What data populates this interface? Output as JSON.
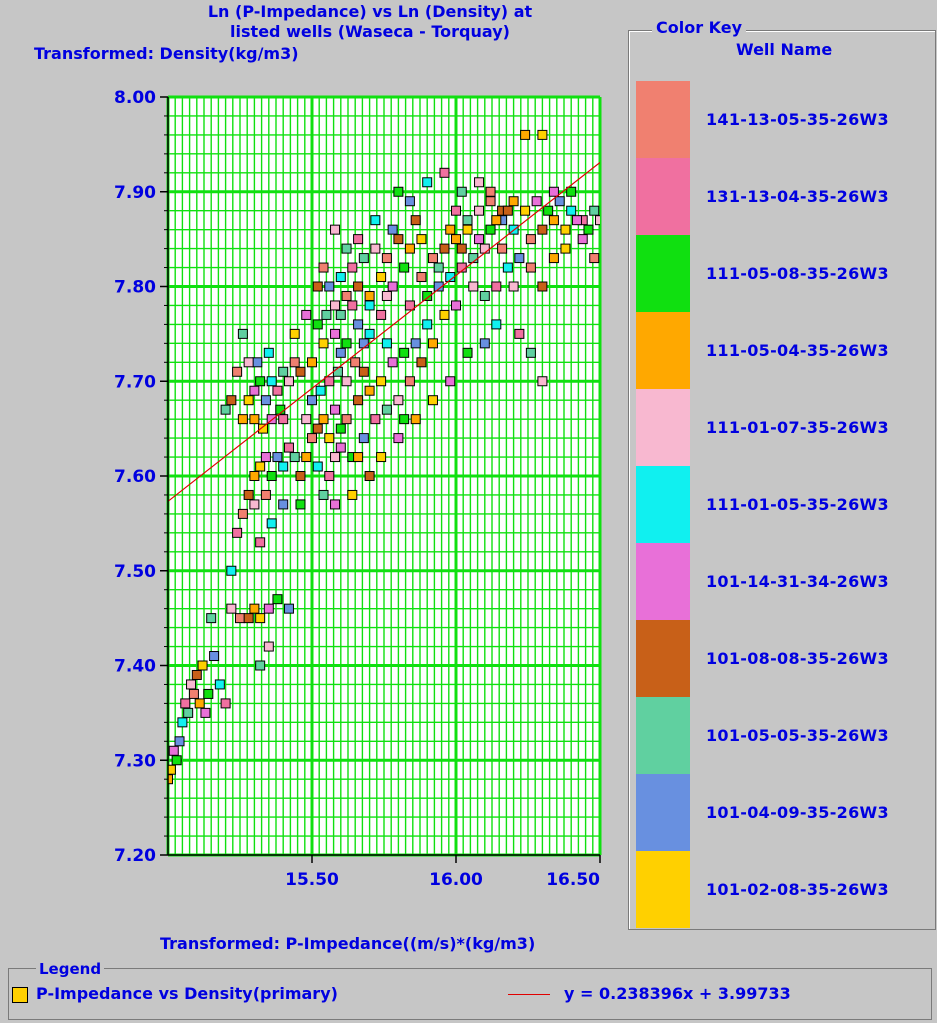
{
  "chart_data": {
    "type": "scatter",
    "title": [
      "Ln (P-Impedance) vs Ln (Density) at",
      "listed wells (Waseca - Torquay)"
    ],
    "ylabel": "Transformed: Density(kg/m3)",
    "xlabel": "Transformed: P-Impedance((m/s)*(kg/m3)",
    "xlim": [
      15.0,
      16.5
    ],
    "ylim": [
      7.2,
      8.0
    ],
    "x_ticks": [
      "15.50",
      "16.00",
      "16.50"
    ],
    "y_ticks": [
      "7.20",
      "7.30",
      "7.40",
      "7.50",
      "7.60",
      "7.70",
      "7.80",
      "7.90",
      "8.00"
    ],
    "grid": true,
    "trendline": {
      "slope": 0.238396,
      "intercept": 3.99733,
      "color": "#e00000"
    },
    "series_points": [
      [
        15.0,
        7.28
      ],
      [
        15.01,
        7.29
      ],
      [
        15.02,
        7.31
      ],
      [
        15.03,
        7.3
      ],
      [
        15.04,
        7.32
      ],
      [
        15.05,
        7.34
      ],
      [
        15.06,
        7.36
      ],
      [
        15.07,
        7.35
      ],
      [
        15.08,
        7.38
      ],
      [
        15.09,
        7.37
      ],
      [
        15.1,
        7.39
      ],
      [
        15.11,
        7.36
      ],
      [
        15.12,
        7.4
      ],
      [
        15.13,
        7.35
      ],
      [
        15.14,
        7.37
      ],
      [
        15.16,
        7.41
      ],
      [
        15.18,
        7.38
      ],
      [
        15.2,
        7.36
      ],
      [
        15.15,
        7.45
      ],
      [
        15.22,
        7.46
      ],
      [
        15.25,
        7.45
      ],
      [
        15.28,
        7.45
      ],
      [
        15.3,
        7.46
      ],
      [
        15.32,
        7.45
      ],
      [
        15.35,
        7.46
      ],
      [
        15.38,
        7.47
      ],
      [
        15.42,
        7.46
      ],
      [
        15.22,
        7.5
      ],
      [
        15.24,
        7.54
      ],
      [
        15.32,
        7.4
      ],
      [
        15.35,
        7.42
      ],
      [
        15.26,
        7.56
      ],
      [
        15.28,
        7.58
      ],
      [
        15.3,
        7.6
      ],
      [
        15.32,
        7.61
      ],
      [
        15.34,
        7.62
      ],
      [
        15.36,
        7.6
      ],
      [
        15.38,
        7.62
      ],
      [
        15.4,
        7.61
      ],
      [
        15.42,
        7.63
      ],
      [
        15.44,
        7.62
      ],
      [
        15.3,
        7.57
      ],
      [
        15.34,
        7.58
      ],
      [
        15.46,
        7.6
      ],
      [
        15.48,
        7.62
      ],
      [
        15.28,
        7.68
      ],
      [
        15.3,
        7.69
      ],
      [
        15.32,
        7.7
      ],
      [
        15.34,
        7.68
      ],
      [
        15.36,
        7.7
      ],
      [
        15.38,
        7.69
      ],
      [
        15.4,
        7.71
      ],
      [
        15.42,
        7.7
      ],
      [
        15.44,
        7.72
      ],
      [
        15.46,
        7.71
      ],
      [
        15.3,
        7.66
      ],
      [
        15.33,
        7.65
      ],
      [
        15.36,
        7.66
      ],
      [
        15.39,
        7.67
      ],
      [
        15.31,
        7.72
      ],
      [
        15.35,
        7.73
      ],
      [
        15.4,
        7.66
      ],
      [
        15.2,
        7.67
      ],
      [
        15.48,
        7.66
      ],
      [
        15.5,
        7.64
      ],
      [
        15.52,
        7.65
      ],
      [
        15.54,
        7.66
      ],
      [
        15.56,
        7.64
      ],
      [
        15.58,
        7.67
      ],
      [
        15.6,
        7.65
      ],
      [
        15.5,
        7.68
      ],
      [
        15.53,
        7.69
      ],
      [
        15.56,
        7.7
      ],
      [
        15.59,
        7.71
      ],
      [
        15.62,
        7.7
      ],
      [
        15.65,
        7.72
      ],
      [
        15.68,
        7.71
      ],
      [
        15.5,
        7.72
      ],
      [
        15.54,
        7.74
      ],
      [
        15.58,
        7.75
      ],
      [
        15.62,
        7.74
      ],
      [
        15.66,
        7.76
      ],
      [
        15.7,
        7.75
      ],
      [
        15.74,
        7.77
      ],
      [
        15.55,
        7.77
      ],
      [
        15.58,
        7.78
      ],
      [
        15.62,
        7.79
      ],
      [
        15.66,
        7.8
      ],
      [
        15.7,
        7.79
      ],
      [
        15.74,
        7.81
      ],
      [
        15.78,
        7.8
      ],
      [
        15.82,
        7.82
      ],
      [
        15.56,
        7.8
      ],
      [
        15.6,
        7.81
      ],
      [
        15.64,
        7.82
      ],
      [
        15.68,
        7.83
      ],
      [
        15.72,
        7.84
      ],
      [
        15.76,
        7.83
      ],
      [
        15.8,
        7.85
      ],
      [
        15.84,
        7.84
      ],
      [
        15.88,
        7.85
      ],
      [
        15.6,
        7.63
      ],
      [
        15.64,
        7.62
      ],
      [
        15.68,
        7.64
      ],
      [
        15.52,
        7.61
      ],
      [
        15.56,
        7.6
      ],
      [
        15.54,
        7.58
      ],
      [
        15.58,
        7.62
      ],
      [
        15.62,
        7.66
      ],
      [
        15.66,
        7.68
      ],
      [
        15.7,
        7.69
      ],
      [
        15.74,
        7.7
      ],
      [
        15.78,
        7.72
      ],
      [
        15.82,
        7.73
      ],
      [
        15.86,
        7.74
      ],
      [
        15.9,
        7.76
      ],
      [
        15.72,
        7.66
      ],
      [
        15.76,
        7.67
      ],
      [
        15.8,
        7.68
      ],
      [
        15.84,
        7.7
      ],
      [
        15.88,
        7.72
      ],
      [
        15.92,
        7.74
      ],
      [
        15.96,
        7.77
      ],
      [
        16.0,
        7.78
      ],
      [
        15.9,
        7.79
      ],
      [
        15.94,
        7.8
      ],
      [
        15.98,
        7.81
      ],
      [
        16.02,
        7.82
      ],
      [
        16.06,
        7.83
      ],
      [
        16.1,
        7.84
      ],
      [
        15.92,
        7.83
      ],
      [
        15.96,
        7.84
      ],
      [
        16.0,
        7.85
      ],
      [
        16.04,
        7.86
      ],
      [
        16.08,
        7.85
      ],
      [
        16.12,
        7.86
      ],
      [
        16.16,
        7.87
      ],
      [
        16.2,
        7.86
      ],
      [
        16.0,
        7.88
      ],
      [
        16.04,
        7.87
      ],
      [
        16.08,
        7.88
      ],
      [
        16.12,
        7.89
      ],
      [
        16.16,
        7.88
      ],
      [
        16.2,
        7.89
      ],
      [
        16.24,
        7.88
      ],
      [
        16.28,
        7.89
      ],
      [
        16.32,
        7.88
      ],
      [
        16.36,
        7.89
      ],
      [
        16.4,
        7.88
      ],
      [
        16.44,
        7.87
      ],
      [
        16.48,
        7.88
      ],
      [
        16.5,
        7.87
      ],
      [
        16.26,
        7.85
      ],
      [
        16.3,
        7.86
      ],
      [
        16.34,
        7.87
      ],
      [
        16.38,
        7.86
      ],
      [
        16.42,
        7.87
      ],
      [
        16.46,
        7.86
      ],
      [
        16.22,
        7.83
      ],
      [
        16.18,
        7.82
      ],
      [
        16.14,
        7.8
      ],
      [
        16.1,
        7.79
      ],
      [
        16.2,
        7.8
      ],
      [
        16.26,
        7.82
      ],
      [
        16.3,
        7.8
      ],
      [
        16.34,
        7.83
      ],
      [
        16.38,
        7.84
      ],
      [
        16.44,
        7.85
      ],
      [
        15.8,
        7.9
      ],
      [
        15.84,
        7.89
      ],
      [
        15.9,
        7.91
      ],
      [
        15.96,
        7.92
      ],
      [
        16.02,
        7.9
      ],
      [
        16.08,
        7.91
      ],
      [
        16.12,
        7.9
      ],
      [
        16.18,
        7.88
      ],
      [
        16.24,
        7.96
      ],
      [
        16.3,
        7.96
      ],
      [
        16.34,
        7.9
      ],
      [
        16.4,
        7.9
      ],
      [
        15.78,
        7.86
      ],
      [
        15.72,
        7.87
      ],
      [
        15.66,
        7.85
      ],
      [
        15.62,
        7.84
      ],
      [
        15.58,
        7.86
      ],
      [
        15.54,
        7.82
      ],
      [
        15.52,
        7.8
      ],
      [
        15.86,
        7.66
      ],
      [
        15.92,
        7.68
      ],
      [
        15.98,
        7.7
      ],
      [
        16.04,
        7.73
      ],
      [
        16.1,
        7.74
      ],
      [
        16.14,
        7.76
      ],
      [
        16.22,
        7.75
      ],
      [
        16.26,
        7.73
      ],
      [
        16.3,
        7.7
      ],
      [
        16.48,
        7.83
      ],
      [
        15.7,
        7.6
      ],
      [
        15.66,
        7.62
      ],
      [
        15.64,
        7.58
      ],
      [
        15.58,
        7.57
      ],
      [
        15.46,
        7.57
      ],
      [
        15.4,
        7.57
      ],
      [
        15.36,
        7.55
      ],
      [
        15.32,
        7.53
      ],
      [
        15.26,
        7.75
      ],
      [
        15.28,
        7.72
      ],
      [
        15.24,
        7.71
      ],
      [
        15.22,
        7.68
      ],
      [
        15.26,
        7.66
      ],
      [
        15.44,
        7.75
      ],
      [
        15.48,
        7.77
      ],
      [
        15.52,
        7.76
      ],
      [
        15.6,
        7.73
      ],
      [
        15.76,
        7.74
      ],
      [
        15.84,
        7.78
      ],
      [
        15.94,
        7.82
      ],
      [
        16.06,
        7.8
      ],
      [
        16.16,
        7.84
      ],
      [
        15.86,
        7.87
      ],
      [
        15.98,
        7.86
      ],
      [
        15.74,
        7.62
      ],
      [
        15.8,
        7.64
      ],
      [
        15.82,
        7.66
      ],
      [
        15.68,
        7.74
      ],
      [
        15.7,
        7.78
      ],
      [
        15.64,
        7.78
      ],
      [
        15.6,
        7.77
      ],
      [
        15.76,
        7.79
      ],
      [
        15.88,
        7.81
      ],
      [
        16.02,
        7.84
      ],
      [
        16.14,
        7.87
      ]
    ],
    "key_title": "Color Key",
    "key_subtitle": "Well Name",
    "wells": [
      {
        "name": "141-13-05-35-26W3",
        "color": "#f08070"
      },
      {
        "name": "131-13-04-35-26W3",
        "color": "#f070a0"
      },
      {
        "name": "111-05-08-35-26W3",
        "color": "#10e010"
      },
      {
        "name": "111-05-04-35-26W3",
        "color": "#ffa800"
      },
      {
        "name": "111-01-07-35-26W3",
        "color": "#f8b8d0"
      },
      {
        "name": "111-01-05-35-26W3",
        "color": "#10f0f0"
      },
      {
        "name": "101-14-31-34-26W3",
        "color": "#e870d8"
      },
      {
        "name": "101-08-08-35-26W3",
        "color": "#c86018"
      },
      {
        "name": "101-05-05-35-26W3",
        "color": "#60d0a0"
      },
      {
        "name": "101-04-09-35-26W3",
        "color": "#6890e0"
      },
      {
        "name": "101-02-08-35-26W3",
        "color": "#ffd000"
      }
    ],
    "legend": {
      "title": "Legend",
      "series_name": "P-Impedance vs Density(primary)",
      "trend_label": "y = 0.238396x + 3.99733"
    }
  }
}
